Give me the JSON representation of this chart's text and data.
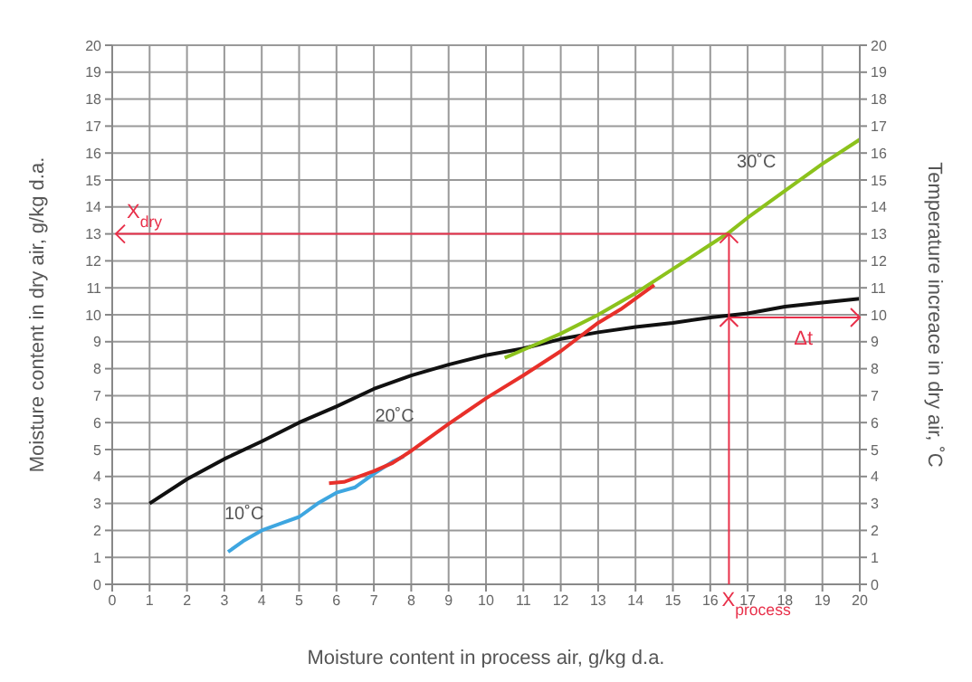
{
  "chart_data": {
    "type": "line",
    "xlabel": "Moisture content in process air, g/kg d.a.",
    "ylabel": "Moisture content in dry air, g/kg d.a.",
    "y2label": "Temperature increace in dry air, ˚C",
    "xlim": [
      0,
      20
    ],
    "xticks": [
      0,
      1,
      2,
      3,
      4,
      5,
      6,
      7,
      8,
      9,
      10,
      11,
      12,
      13,
      14,
      15,
      16,
      17,
      18,
      19,
      20
    ],
    "ylim": [
      0,
      20
    ],
    "yticks": [
      0,
      1,
      2,
      3,
      4,
      5,
      6,
      7,
      8,
      9,
      10,
      11,
      12,
      13,
      14,
      15,
      16,
      17,
      18,
      19,
      20
    ],
    "y2lim": [
      0,
      20
    ],
    "y2ticks": [
      0,
      1,
      2,
      3,
      4,
      5,
      6,
      7,
      8,
      9,
      10,
      11,
      12,
      13,
      14,
      15,
      16,
      17,
      18,
      19,
      20
    ],
    "grid": true,
    "legend": false,
    "marker": "none",
    "line_style": "solid",
    "series": [
      {
        "color": "#111111",
        "x": [
          1,
          2,
          3,
          4,
          5,
          6,
          7,
          8,
          9,
          10,
          11,
          12,
          13,
          14,
          15,
          16,
          17,
          18,
          19,
          20
        ],
        "values": [
          3,
          3.9,
          4.65,
          5.3,
          6,
          6.6,
          7.25,
          7.75,
          8.15,
          8.5,
          8.75,
          9.1,
          9.35,
          9.55,
          9.7,
          9.9,
          10.05,
          10.3,
          10.45,
          10.6
        ]
      },
      {
        "name": "10˚C",
        "color": "#3ea6e0",
        "x": [
          3.1,
          3.5,
          4,
          4.5,
          5,
          5.5,
          6,
          6.5,
          7,
          7.5,
          7.8
        ],
        "values": [
          1.2,
          1.6,
          2,
          2.25,
          2.5,
          3,
          3.4,
          3.6,
          4.1,
          4.55,
          4.75
        ]
      },
      {
        "name": "20˚C",
        "color": "#e8302a",
        "x": [
          5.8,
          6.2,
          6.5,
          7,
          7.5,
          8,
          9,
          10,
          11,
          12,
          13,
          13.6,
          14.5
        ],
        "values": [
          3.75,
          3.8,
          3.95,
          4.2,
          4.5,
          4.95,
          5.95,
          6.9,
          7.75,
          8.65,
          9.7,
          10.2,
          11.1
        ]
      },
      {
        "name": "30˚C",
        "color": "#8cc21c",
        "x": [
          10.5,
          11,
          12,
          13,
          14,
          15,
          16,
          16.5,
          17,
          18,
          19,
          20
        ],
        "values": [
          8.4,
          8.7,
          9.3,
          10,
          10.8,
          11.7,
          12.6,
          13.05,
          13.6,
          14.6,
          15.6,
          16.5
        ]
      }
    ],
    "ref_lines": [
      {
        "axis": "y",
        "value": 13,
        "label": "X$_{dry}$",
        "color": "#e8304a"
      },
      {
        "axis": "x",
        "value": 16.5,
        "label": "X$_{process}$",
        "color": "#e8304a"
      },
      {
        "axis": "y",
        "value": 9.9,
        "label": "Δt",
        "color": "#e8304a"
      }
    ]
  }
}
